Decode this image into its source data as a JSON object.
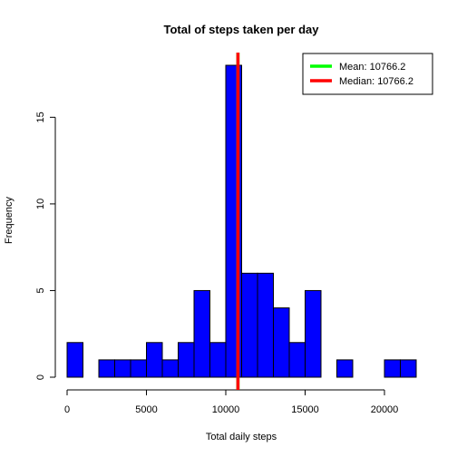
{
  "chart_data": {
    "type": "bar",
    "title": "Total of steps taken per day",
    "xlabel": "Total daily steps",
    "ylabel": "Frequency",
    "bin_width": 1000,
    "bin_starts": [
      0,
      1000,
      2000,
      3000,
      4000,
      5000,
      6000,
      7000,
      8000,
      9000,
      10000,
      11000,
      12000,
      13000,
      14000,
      15000,
      16000,
      17000,
      18000,
      19000,
      20000,
      21000
    ],
    "values": [
      2,
      0,
      1,
      1,
      1,
      2,
      1,
      2,
      5,
      2,
      18,
      6,
      6,
      4,
      2,
      5,
      0,
      1,
      0,
      0,
      1,
      1
    ],
    "xlim": [
      0,
      22000
    ],
    "ylim": [
      0,
      18
    ],
    "x_ticks": [
      0,
      5000,
      10000,
      15000,
      20000
    ],
    "y_ticks": [
      0,
      5,
      10,
      15
    ],
    "bar_color": "#0000ff",
    "grid": false,
    "legend_position": "top-right",
    "lines": [
      {
        "name": "Mean:  10766.2",
        "value": 10766.2,
        "color": "#00ff00"
      },
      {
        "name": "Median:  10766.2",
        "value": 10766.2,
        "color": "#ff0000"
      }
    ]
  }
}
